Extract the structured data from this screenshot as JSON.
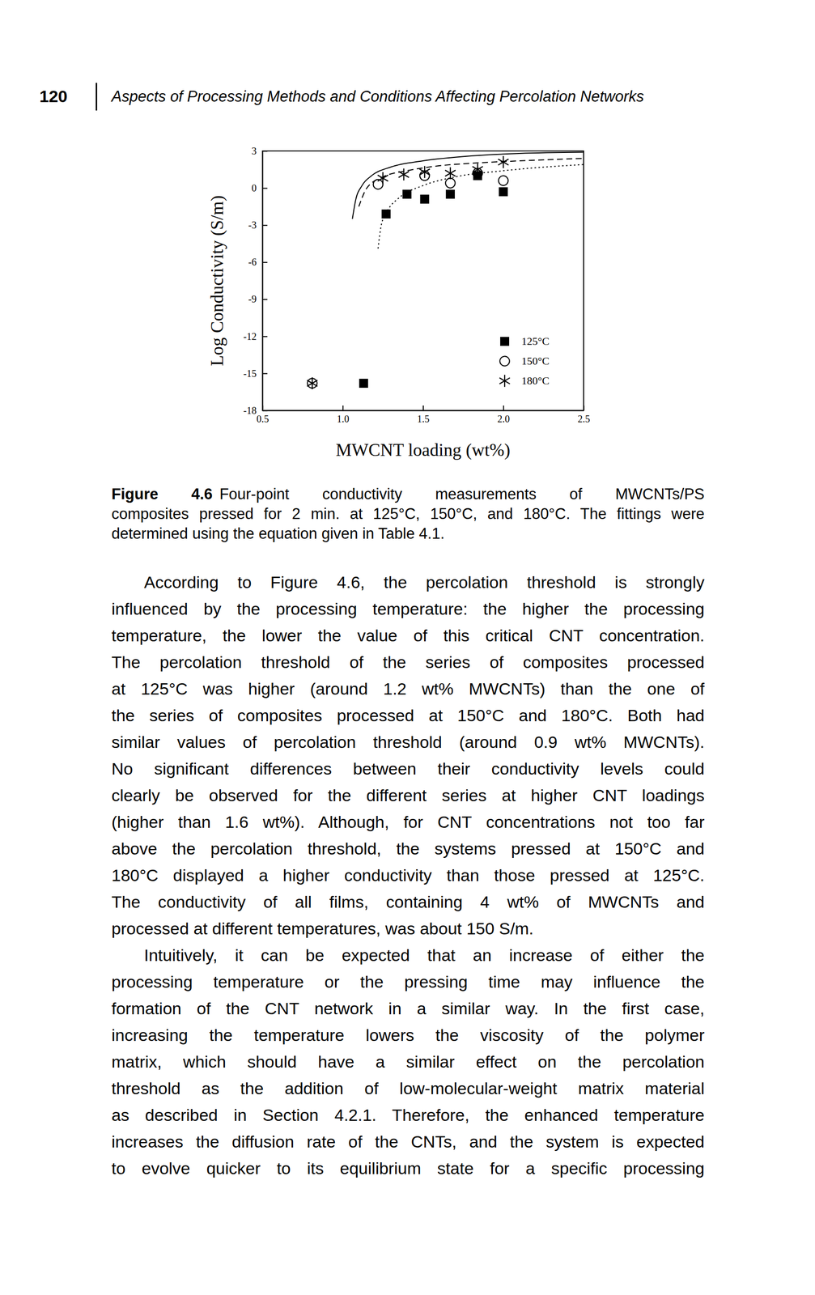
{
  "header": {
    "page_number": "120",
    "title": "Aspects of Processing Methods and Conditions Affecting Percolation Networks"
  },
  "chart_data": {
    "type": "scatter",
    "xlabel": "MWCNT loading (wt%)",
    "ylabel": "Log Conductivity (S/m)",
    "xlim": [
      0.5,
      2.5
    ],
    "ylim": [
      -18,
      3
    ],
    "xticks": [
      0.5,
      {
        "value": 1.0,
        "label": "1.0"
      },
      1.5,
      {
        "value": 2.0,
        "label": "2.0"
      },
      2.5
    ],
    "yticks": [
      3,
      0,
      -3,
      -6,
      -9,
      -12,
      -15,
      -18
    ],
    "legend": "lower right",
    "series": [
      {
        "name": "125°C",
        "type": "scatter",
        "marker": "square",
        "color": "#000000",
        "x": [
          1.13,
          1.27,
          1.4,
          1.51,
          1.67,
          1.84,
          2.0
        ],
        "values": [
          -15.8,
          -2.1,
          -0.5,
          -0.9,
          -0.5,
          1.0,
          -0.3
        ]
      },
      {
        "name": "150°C",
        "type": "scatter",
        "marker": "circle",
        "color": "#000000",
        "x": [
          0.81,
          1.22,
          1.51,
          1.67,
          1.84,
          2.0
        ],
        "values": [
          -15.8,
          0.3,
          1.0,
          0.4,
          1.2,
          0.6
        ]
      },
      {
        "name": "180°C",
        "type": "scatter",
        "marker": "asterisk",
        "color": "#000000",
        "x": [
          0.81,
          1.25,
          1.38,
          1.51,
          1.67,
          1.84,
          2.0
        ],
        "values": [
          -15.8,
          0.8,
          1.1,
          1.3,
          1.2,
          1.5,
          2.1
        ]
      },
      {
        "type": "line",
        "line_style": "dotted",
        "color": "#000000",
        "x": [
          1.22,
          1.24,
          1.28,
          1.35,
          1.5,
          1.7,
          2.0,
          2.5
        ],
        "values": [
          -4.9,
          -3.0,
          -1.8,
          -0.8,
          0.2,
          0.9,
          1.4,
          1.9
        ]
      },
      {
        "type": "line",
        "line_style": "dashed",
        "color": "#000000",
        "x": [
          1.1,
          1.15,
          1.25,
          1.4,
          1.6,
          1.8,
          2.1,
          2.5
        ],
        "values": [
          -1.5,
          0.0,
          0.9,
          1.4,
          1.8,
          2.0,
          2.2,
          2.4
        ]
      },
      {
        "type": "line",
        "line_style": "solid",
        "color": "#000000",
        "x": [
          1.06,
          1.08,
          1.12,
          1.18,
          1.3,
          1.5,
          1.8,
          2.1,
          2.5
        ],
        "values": [
          -2.5,
          -1.0,
          0.2,
          1.0,
          1.7,
          2.2,
          2.6,
          2.8,
          2.9
        ]
      }
    ]
  },
  "caption": {
    "label": "Figure 4.6",
    "lines": [
      "Four-point conductivity measurements of MWCNTs/PS",
      "composites pressed for 2 min. at 125°C, 150°C, and 180°C. The fittings were",
      "determined using the equation given in Table 4.1."
    ]
  },
  "paragraphs": [
    [
      "According to Figure 4.6, the percolation threshold is strongly",
      "influenced by the processing temperature: the higher the processing",
      "temperature, the lower the value of this critical CNT concentration.",
      "The percolation threshold of the series of composites processed",
      "at 125°C was higher (around 1.2 wt% MWCNTs) than the one of",
      "the series of composites processed at 150°C and 180°C. Both had",
      "similar values of percolation threshold (around 0.9 wt% MWCNTs).",
      "No significant differences between their conductivity levels could",
      "clearly be observed for the different series at higher CNT loadings",
      "(higher than 1.6 wt%). Although, for CNT concentrations not too far",
      "above the percolation threshold, the systems pressed at 150°C and",
      "180°C displayed a higher conductivity than those pressed at 125°C.",
      "The conductivity of all films, containing 4 wt% of MWCNTs and",
      "processed at different temperatures, was about 150 S/m."
    ],
    [
      "Intuitively, it can be expected that an increase of either the",
      "processing temperature or the pressing time may influence the",
      "formation of the CNT network in a similar way. In the first case,",
      "increasing the temperature lowers the viscosity of the polymer",
      "matrix, which should have a similar effect on the percolation",
      "threshold as the addition of low-molecular-weight matrix material",
      "as described in Section 4.2.1. Therefore, the enhanced temperature",
      "increases the diffusion rate of the CNTs, and the system is expected",
      "to evolve quicker to its equilibrium state for a specific processing"
    ]
  ]
}
